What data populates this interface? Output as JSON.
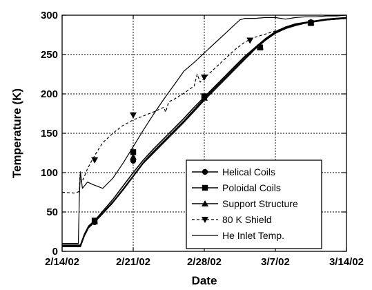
{
  "chart_data": {
    "type": "line",
    "xlabel": "Date",
    "ylabel": "Temperature (K)",
    "x_tick_labels": [
      "2/14/02",
      "2/21/02",
      "2/28/02",
      "3/7/02",
      "3/14/02"
    ],
    "x_tick_values": [
      0,
      7,
      14,
      21,
      28
    ],
    "y_tick_labels": [
      "0",
      "50",
      "100",
      "150",
      "200",
      "250",
      "300"
    ],
    "ylim": [
      0,
      300
    ],
    "xlim": [
      0,
      28
    ],
    "grid": true,
    "legend_position": "bottom-right",
    "series": [
      {
        "name": "Helical Coils",
        "marker": "circle",
        "line": "solid",
        "x": [
          0,
          1.8,
          2.2,
          2.6,
          3.2,
          4,
          5,
          6,
          7,
          8,
          9,
          10,
          11,
          12,
          13,
          14,
          15,
          16,
          17,
          18,
          19,
          20,
          21,
          22,
          23,
          24,
          25,
          26,
          27,
          28
        ],
        "y": [
          6,
          6,
          20,
          30,
          37,
          48,
          62,
          78,
          95,
          112,
          125,
          138,
          151,
          164,
          178,
          192,
          205,
          218,
          231,
          244,
          257,
          268,
          277,
          283,
          287,
          290,
          292,
          294,
          295,
          296
        ],
        "marker_x": [
          3.2,
          7,
          14,
          24.5
        ],
        "marker_y": [
          37,
          115,
          196,
          291
        ]
      },
      {
        "name": "Poloidal Coils",
        "marker": "square",
        "line": "solid",
        "x": [
          0,
          1.8,
          2.2,
          2.6,
          3.2,
          4,
          5,
          6,
          7,
          8,
          9,
          10,
          11,
          12,
          13,
          14,
          15,
          16,
          17,
          18,
          19,
          20,
          21,
          22,
          23,
          24,
          25,
          26,
          27,
          28
        ],
        "y": [
          8,
          8,
          22,
          32,
          39,
          51,
          66,
          83,
          100,
          116,
          130,
          143,
          156,
          169,
          183,
          196,
          209,
          222,
          235,
          248,
          259,
          270,
          279,
          285,
          289,
          291,
          293,
          295,
          296,
          297
        ],
        "marker_x": [
          3.2,
          7,
          14,
          19.5,
          24.5
        ],
        "marker_y": [
          39,
          126,
          197,
          259,
          290
        ]
      },
      {
        "name": "Support Structure",
        "marker": "triangle-up",
        "line": "solid",
        "x": [
          0,
          1.8,
          2.2,
          2.6,
          3.2,
          4,
          5,
          6,
          7,
          8,
          9,
          10,
          11,
          12,
          13,
          14,
          15,
          16,
          17,
          18,
          19,
          20,
          21,
          22,
          23,
          24,
          25,
          26,
          27,
          28
        ],
        "y": [
          7,
          7,
          21,
          31,
          38,
          49,
          63,
          79,
          96,
          113,
          127,
          140,
          153,
          166,
          180,
          194,
          207,
          220,
          233,
          246,
          258,
          269,
          278,
          284,
          288,
          290,
          292,
          294,
          295,
          296
        ],
        "marker_x": [
          3.2,
          7,
          14,
          19.5,
          24.5
        ],
        "marker_y": [
          38,
          120,
          195,
          260,
          291
        ]
      },
      {
        "name": "80 K Shield",
        "marker": "triangle-down",
        "line": "dashed",
        "x": [
          0,
          1.2,
          1.7,
          1.75,
          1.9,
          2.1,
          2.5,
          3,
          3.5,
          4,
          5,
          6,
          7,
          8,
          9,
          10,
          10.2,
          10.5,
          11,
          12,
          13,
          13.3,
          13.6,
          14,
          15,
          16,
          17,
          18,
          19,
          20,
          21,
          22,
          23,
          24,
          25,
          26,
          27,
          28
        ],
        "y": [
          75,
          74,
          76,
          97,
          88,
          92,
          105,
          117,
          128,
          138,
          150,
          160,
          167,
          172,
          177,
          183,
          177,
          190,
          193,
          201,
          210,
          225,
          215,
          220,
          232,
          244,
          256,
          266,
          272,
          276,
          280,
          284,
          288,
          291,
          293,
          295,
          296,
          297
        ],
        "marker_x": [
          3.2,
          7,
          14,
          18.5
        ],
        "marker_y": [
          116,
          173,
          221,
          268
        ]
      },
      {
        "name": "He Inlet Temp.",
        "marker": "none",
        "line": "solid-thin",
        "x": [
          0,
          1.6,
          1.7,
          1.8,
          2,
          2.5,
          3,
          4,
          5,
          6,
          7,
          8,
          9,
          10,
          11,
          12,
          13,
          14,
          15,
          16,
          17,
          17.5,
          18,
          19,
          20,
          21,
          22,
          23,
          24,
          25,
          26,
          27,
          28
        ],
        "y": [
          10,
          10,
          70,
          101,
          80,
          88,
          85,
          80,
          93,
          112,
          133,
          154,
          174,
          193,
          211,
          229,
          240,
          252,
          264,
          276,
          288,
          294,
          296,
          296,
          297,
          297,
          295,
          297,
          298,
          298,
          299,
          299,
          300
        ]
      }
    ]
  }
}
